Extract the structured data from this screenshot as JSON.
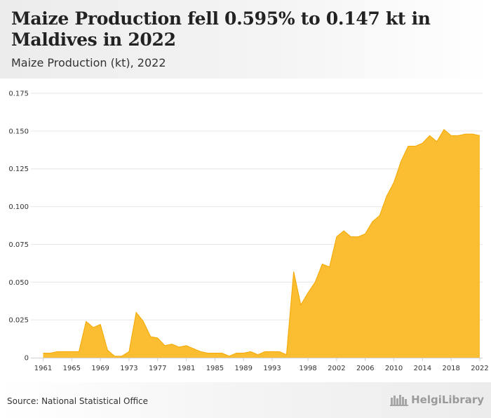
{
  "header": {
    "title": "Maize Production fell 0.595% to 0.147 kt in Maldives in 2022",
    "subtitle": "Maize Production (kt), 2022"
  },
  "footer": {
    "source": "Source: National Statistical Office",
    "brand": "HelgiLibrary"
  },
  "colors": {
    "area_fill": "#fbbd32",
    "area_stroke": "#f5a800",
    "grid": "#e6e6e6",
    "axis": "#cfcfcf"
  },
  "chart_data": {
    "type": "area",
    "title": "",
    "xlabel": "",
    "ylabel": "",
    "grid": true,
    "ylim": [
      0,
      0.175
    ],
    "yticks": [
      0,
      0.025,
      0.05,
      0.075,
      0.1,
      0.125,
      0.15,
      0.175
    ],
    "ytick_labels": [
      "0",
      "0.025",
      "0.050",
      "0.075",
      "0.100",
      "0.125",
      "0.150",
      "0.175"
    ],
    "xticks": [
      1961,
      1965,
      1969,
      1973,
      1977,
      1981,
      1985,
      1989,
      1993,
      1998,
      2002,
      2006,
      2010,
      2014,
      2018,
      2022
    ],
    "x": [
      1961,
      1962,
      1963,
      1964,
      1965,
      1966,
      1967,
      1968,
      1969,
      1970,
      1971,
      1972,
      1973,
      1974,
      1975,
      1976,
      1977,
      1978,
      1979,
      1980,
      1981,
      1982,
      1983,
      1984,
      1985,
      1986,
      1987,
      1988,
      1989,
      1990,
      1991,
      1992,
      1993,
      1994,
      1995,
      1996,
      1997,
      1998,
      1999,
      2000,
      2001,
      2002,
      2003,
      2004,
      2005,
      2006,
      2007,
      2008,
      2009,
      2010,
      2011,
      2012,
      2013,
      2014,
      2015,
      2016,
      2017,
      2018,
      2019,
      2020,
      2021,
      2022
    ],
    "series": [
      {
        "values": [
          0.003,
          0.003,
          0.004,
          0.004,
          0.004,
          0.004,
          0.024,
          0.02,
          0.022,
          0.005,
          0.001,
          0.001,
          0.004,
          0.03,
          0.024,
          0.014,
          0.013,
          0.008,
          0.009,
          0.007,
          0.008,
          0.006,
          0.004,
          0.003,
          0.003,
          0.003,
          0.001,
          0.003,
          0.003,
          0.004,
          0.002,
          0.004,
          0.004,
          0.004,
          0.002,
          0.057,
          0.035,
          0.043,
          0.05,
          0.062,
          0.06,
          0.08,
          0.084,
          0.08,
          0.08,
          0.082,
          0.09,
          0.094,
          0.107,
          0.116,
          0.13,
          0.14,
          0.14,
          0.142,
          0.147,
          0.143,
          0.151,
          0.147,
          0.147,
          0.148,
          0.148,
          0.147
        ]
      }
    ]
  }
}
